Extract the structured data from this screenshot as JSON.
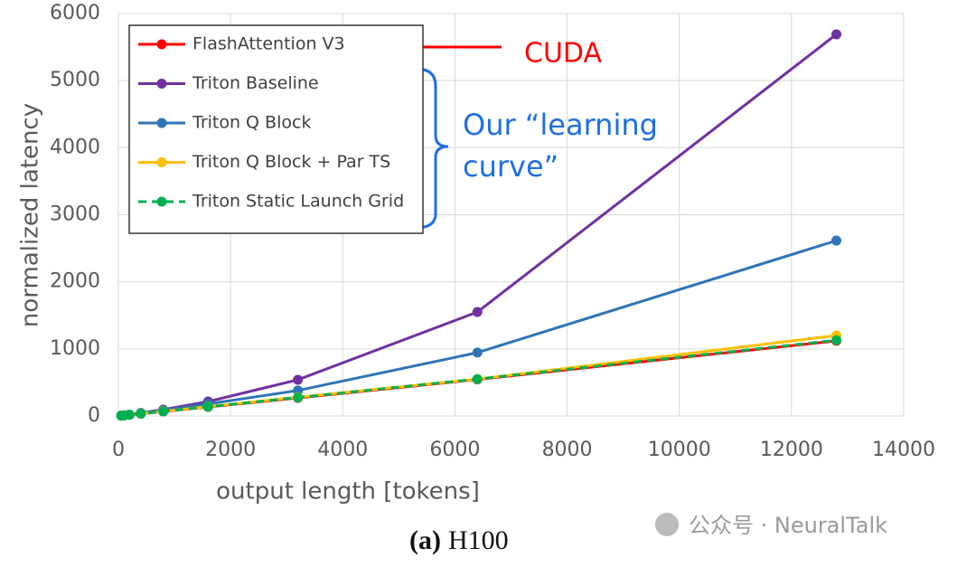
{
  "chart_data": {
    "type": "line",
    "x_label": "output length [tokens]",
    "y_label": "normalized latency",
    "x": [
      50,
      100,
      200,
      400,
      800,
      1600,
      3200,
      6400,
      12800
    ],
    "series": [
      {
        "name": "FlashAttention V3",
        "color": "#ff0000",
        "dashed": false,
        "values": [
          5,
          9,
          17,
          34,
          68,
          135,
          270,
          545,
          1120
        ]
      },
      {
        "name": "Triton Baseline",
        "color": "#7030a0",
        "dashed": false,
        "values": [
          5,
          10,
          20,
          45,
          95,
          215,
          540,
          1550,
          5690
        ]
      },
      {
        "name": "Triton Q Block",
        "color": "#2e75b6",
        "dashed": false,
        "values": [
          5,
          10,
          20,
          40,
          85,
          180,
          380,
          945,
          2615
        ]
      },
      {
        "name": "Triton Q Block + Par TS",
        "color": "#ffc000",
        "dashed": false,
        "values": [
          5,
          9,
          18,
          35,
          70,
          140,
          280,
          550,
          1200
        ]
      },
      {
        "name": "Triton Static Launch Grid",
        "color": "#00b050",
        "dashed": true,
        "values": [
          5,
          9,
          17,
          34,
          68,
          137,
          275,
          550,
          1130
        ]
      }
    ],
    "xlim": [
      0,
      14000
    ],
    "xticks": [
      0,
      2000,
      4000,
      6000,
      8000,
      10000,
      12000,
      14000
    ],
    "ylim": [
      0,
      6000
    ],
    "yticks": [
      0,
      1000,
      2000,
      3000,
      4000,
      5000,
      6000
    ],
    "grid": true,
    "legend": "upper left",
    "annotations": {
      "cuda": "CUDA",
      "learning_curve": [
        "Our “learning",
        "curve”"
      ]
    },
    "caption_label": "(a)",
    "caption": "H100",
    "watermark": "公众号 · NeuralTalk"
  }
}
